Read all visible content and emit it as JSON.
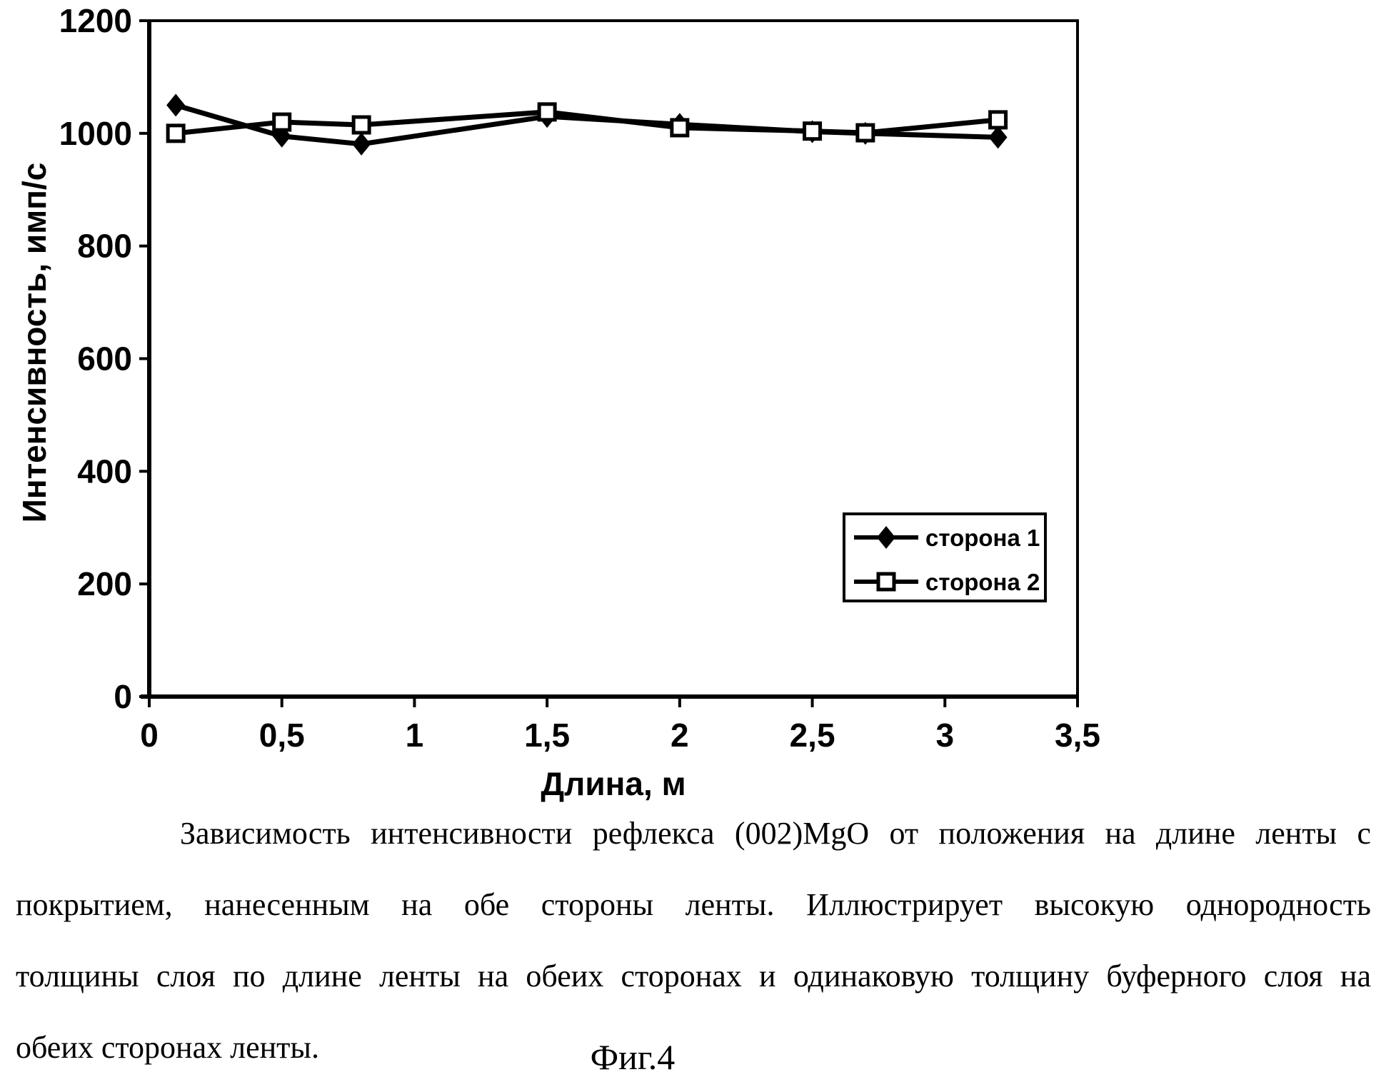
{
  "chart_data": {
    "type": "line",
    "title": "",
    "xlabel": "Длина, м",
    "ylabel": "Интенсивность, имп/с",
    "xlim": [
      0,
      3.5
    ],
    "ylim": [
      0,
      1200
    ],
    "x_ticks": [
      0,
      0.5,
      1,
      1.5,
      2,
      2.5,
      3,
      3.5
    ],
    "x_tick_labels": [
      "0",
      "0,5",
      "1",
      "1,5",
      "2",
      "2,5",
      "3",
      "3,5"
    ],
    "y_ticks": [
      0,
      200,
      400,
      600,
      800,
      1000,
      1200
    ],
    "y_tick_labels": [
      "0",
      "200",
      "400",
      "600",
      "800",
      "1000",
      "1200"
    ],
    "grid": false,
    "legend_position": "inside-right",
    "x": [
      0.1,
      0.5,
      0.8,
      1.5,
      2.0,
      2.5,
      2.7,
      3.2
    ],
    "series": [
      {
        "name": "сторона 1",
        "marker": "diamond-filled",
        "values": [
          1050,
          995,
          981,
          1030,
          1016,
          1003,
          1000,
          993
        ]
      },
      {
        "name": "сторона 2",
        "marker": "square-open",
        "values": [
          1000,
          1020,
          1015,
          1038,
          1010,
          1004,
          1001,
          1024
        ]
      }
    ],
    "line_color": "#000000",
    "background": "#ffffff"
  },
  "caption": {
    "lines": [
      "Зависимость интенсивности рефлекса (002)MgO от положения на длине ленты с",
      "покрытием, нанесенным на обе стороны ленты. Иллюстрирует высокую однородность",
      "толщины слоя по длине ленты на обеих сторонах и одинаковую толщину буферного слоя на",
      "обеих сторонах ленты."
    ],
    "figure_label": "Фиг.4"
  }
}
